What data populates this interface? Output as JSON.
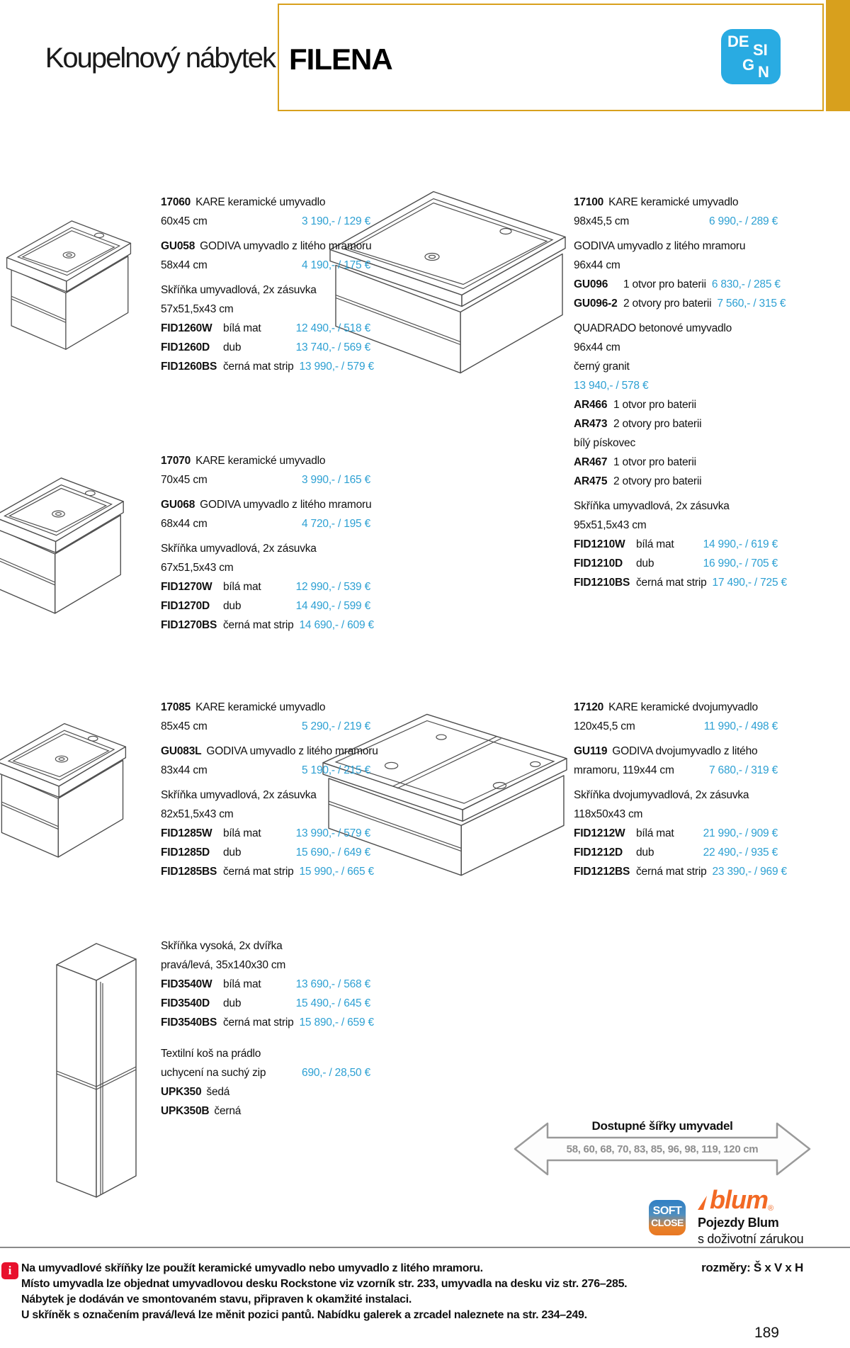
{
  "header": {
    "title_prefix": "Koupelnový nábytek",
    "brand": "FILENA",
    "design_logo": {
      "l1": "DE",
      "l2": "SI",
      "l3": "G",
      "l4": "N"
    }
  },
  "colors": {
    "accent": "#2da0d3",
    "gold": "#d8a01d",
    "logo_blue": "#29abe2",
    "info_red": "#e8112d",
    "blum_orange": "#f26924"
  },
  "blocks": [
    {
      "id": "17060",
      "rows": [
        {
          "k": "h",
          "code": "17060",
          "text": "KARE keramické umyvadlo"
        },
        {
          "k": "pr",
          "text": "60x45 cm",
          "price": "3 190,- / 129 €"
        },
        {
          "k": "h",
          "gap": 1,
          "code": "GU058",
          "text": "GODIVA umyvadlo z litého mramoru"
        },
        {
          "k": "pr",
          "text": "58x44 cm",
          "price": "4 190,- / 175 €"
        },
        {
          "k": "t",
          "gap": 1,
          "text": "Skříňka umyvadlová, 2x zásuvka"
        },
        {
          "k": "t",
          "text": "57x51,5x43 cm"
        },
        {
          "k": "sku",
          "code": "FID1260W",
          "text": "bílá mat",
          "price": "12 490,- / 518 €"
        },
        {
          "k": "sku",
          "code": "FID1260D",
          "text": "dub",
          "price": "13 740,- / 569 €"
        },
        {
          "k": "sku",
          "code": "FID1260BS",
          "text": "černá mat strip",
          "price": "13 990,- / 579 €"
        }
      ]
    },
    {
      "id": "17070",
      "rows": [
        {
          "k": "h",
          "code": "17070",
          "text": "KARE keramické umyvadlo"
        },
        {
          "k": "pr",
          "text": "70x45 cm",
          "price": "3 990,- / 165 €"
        },
        {
          "k": "h",
          "gap": 1,
          "code": "GU068",
          "text": "GODIVA umyvadlo z litého mramoru"
        },
        {
          "k": "pr",
          "text": "68x44 cm",
          "price": "4 720,- / 195 €"
        },
        {
          "k": "t",
          "gap": 1,
          "text": "Skříňka umyvadlová, 2x zásuvka"
        },
        {
          "k": "t",
          "text": "67x51,5x43 cm"
        },
        {
          "k": "sku",
          "code": "FID1270W",
          "text": "bílá mat",
          "price": "12 990,- / 539 €"
        },
        {
          "k": "sku",
          "code": "FID1270D",
          "text": "dub",
          "price": "14 490,- / 599 €"
        },
        {
          "k": "sku",
          "code": "FID1270BS",
          "text": "černá mat strip",
          "price": "14 690,- / 609 €"
        }
      ]
    },
    {
      "id": "17100",
      "rows": [
        {
          "k": "h",
          "code": "17100",
          "text": "KARE keramické umyvadlo"
        },
        {
          "k": "pr",
          "text": "98x45,5 cm",
          "price": "6 990,- / 289 €"
        },
        {
          "k": "t",
          "gap": 1,
          "text": "GODIVA umyvadlo z litého mramoru"
        },
        {
          "k": "t",
          "text": "96x44 cm"
        },
        {
          "k": "sku",
          "cw": 70,
          "code": "GU096",
          "text": "1 otvor pro baterii",
          "price": "6 830,- / 285 €"
        },
        {
          "k": "sku",
          "cw": 70,
          "code": "GU096-2",
          "text": "2 otvory pro baterii",
          "price": "7 560,- / 315 €"
        },
        {
          "k": "t",
          "gap": 1,
          "text": "QUADRADO betonové umyvadlo"
        },
        {
          "k": "t",
          "text": "96x44 cm"
        },
        {
          "k": "t",
          "text": "černý granit"
        },
        {
          "k": "price",
          "price": "13 940,- / 578 €"
        },
        {
          "k": "sku",
          "cw": 56,
          "code": "AR466",
          "text": "1 otvor pro baterii"
        },
        {
          "k": "sku",
          "cw": 56,
          "code": "AR473",
          "text": "2 otvory pro baterii"
        },
        {
          "k": "t",
          "text": "bílý pískovec"
        },
        {
          "k": "sku",
          "cw": 56,
          "code": "AR467",
          "text": "1 otvor pro baterii"
        },
        {
          "k": "sku",
          "cw": 56,
          "code": "AR475",
          "text": "2 otvory pro baterii"
        },
        {
          "k": "t",
          "gap": 1,
          "text": "Skříňka umyvadlová, 2x zásuvka"
        },
        {
          "k": "t",
          "text": "95x51,5x43 cm"
        },
        {
          "k": "sku",
          "code": "FID1210W",
          "text": "bílá mat",
          "price": "14 990,- / 619 €"
        },
        {
          "k": "sku",
          "code": "FID1210D",
          "text": "dub",
          "price": "16 990,- / 705 €"
        },
        {
          "k": "sku",
          "code": "FID1210BS",
          "text": "černá mat strip",
          "price": "17 490,- / 725 €"
        }
      ]
    },
    {
      "id": "17085",
      "rows": [
        {
          "k": "h",
          "code": "17085",
          "text": "KARE keramické umyvadlo"
        },
        {
          "k": "pr",
          "text": "85x45 cm",
          "price": "5 290,- / 219 €"
        },
        {
          "k": "h",
          "gap": 1,
          "code": "GU083L",
          "text": "GODIVA umyvadlo z litého mramoru"
        },
        {
          "k": "pr",
          "text": "83x44 cm",
          "price": "5 190,- / 215 €"
        },
        {
          "k": "t",
          "gap": 1,
          "text": "Skříňka umyvadlová, 2x zásuvka"
        },
        {
          "k": "t",
          "text": "82x51,5x43 cm"
        },
        {
          "k": "sku",
          "code": "FID1285W",
          "text": "bílá mat",
          "price": "13 990,- / 579 €"
        },
        {
          "k": "sku",
          "code": "FID1285D",
          "text": "dub",
          "price": "15 690,- / 649 €"
        },
        {
          "k": "sku",
          "code": "FID1285BS",
          "text": "černá mat strip",
          "price": "15 990,- / 665 €"
        }
      ]
    },
    {
      "id": "17120",
      "rows": [
        {
          "k": "h",
          "code": "17120",
          "text": "KARE keramické dvojumyvadlo"
        },
        {
          "k": "pr",
          "text": "120x45,5 cm",
          "price": "11 990,- / 498 €"
        },
        {
          "k": "h",
          "gap": 1,
          "code": "GU119",
          "text": "GODIVA dvojumyvadlo z litého"
        },
        {
          "k": "pr",
          "text": "mramoru, 119x44 cm",
          "price": "7 680,- / 319 €"
        },
        {
          "k": "t",
          "gap": 1,
          "text": "Skříňka dvojumyvadlová, 2x zásuvka"
        },
        {
          "k": "t",
          "text": "118x50x43 cm"
        },
        {
          "k": "sku",
          "code": "FID1212W",
          "text": "bílá mat",
          "price": "21 990,- / 909 €"
        },
        {
          "k": "sku",
          "code": "FID1212D",
          "text": "dub",
          "price": "22 490,- / 935 €"
        },
        {
          "k": "sku",
          "code": "FID1212BS",
          "text": "černá mat strip",
          "price": "23 390,- / 969 €"
        }
      ]
    },
    {
      "id": "tall-cabinet",
      "rows": [
        {
          "k": "t",
          "text": "Skříňka vysoká, 2x dvířka"
        },
        {
          "k": "t",
          "text": "pravá/levá, 35x140x30 cm"
        },
        {
          "k": "sku",
          "code": "FID3540W",
          "text": "bílá mat",
          "price": "13 690,- / 568 €"
        },
        {
          "k": "sku",
          "code": "FID3540D",
          "text": "dub",
          "price": "15 490,- / 645 €"
        },
        {
          "k": "sku",
          "code": "FID3540BS",
          "text": "černá mat strip",
          "price": "15 890,- / 659 €"
        }
      ]
    },
    {
      "id": "textile-basket",
      "rows": [
        {
          "k": "t",
          "text": "Textilní koš na prádlo"
        },
        {
          "k": "pr",
          "text": "uchycení na suchý zip",
          "price": "690,- / 28,50 €"
        },
        {
          "k": "h",
          "code": "UPK350",
          "text": "šedá"
        },
        {
          "k": "h",
          "code": "UPK350B",
          "text": "černá"
        }
      ]
    }
  ],
  "arrow": {
    "title": "Dostupné šířky umyvadel",
    "widths": "58, 60, 68, 70, 83, 85, 96, 98, 119, 120 cm"
  },
  "badges": {
    "soft_line1": "SOFT",
    "soft_line2": "CLOSE",
    "blum_wordmark": "blum",
    "blum_reg": "®",
    "blum_caption1": "Pojezdy Blum",
    "blum_caption2": "s doživotní zárukou"
  },
  "footer": {
    "notes": [
      "Na umyvadlové skříňky lze použít keramické umyvadlo nebo umyvadlo z litého mramoru.",
      "Místo umyvadla lze objednat umyvadlovou desku Rockstone viz vzorník str. 233, umyvadla na desku viz str. 276–285.",
      "Nábytek je dodáván ve smontovaném stavu, připraven k okamžité instalaci.",
      "U skříněk s označením pravá/levá lze měnit pozici pantů. Nabídku galerek a zrcadel naleznete na str. 234–249."
    ],
    "dimensions_note": "rozměry: Š x V x H",
    "page_number": "189"
  }
}
